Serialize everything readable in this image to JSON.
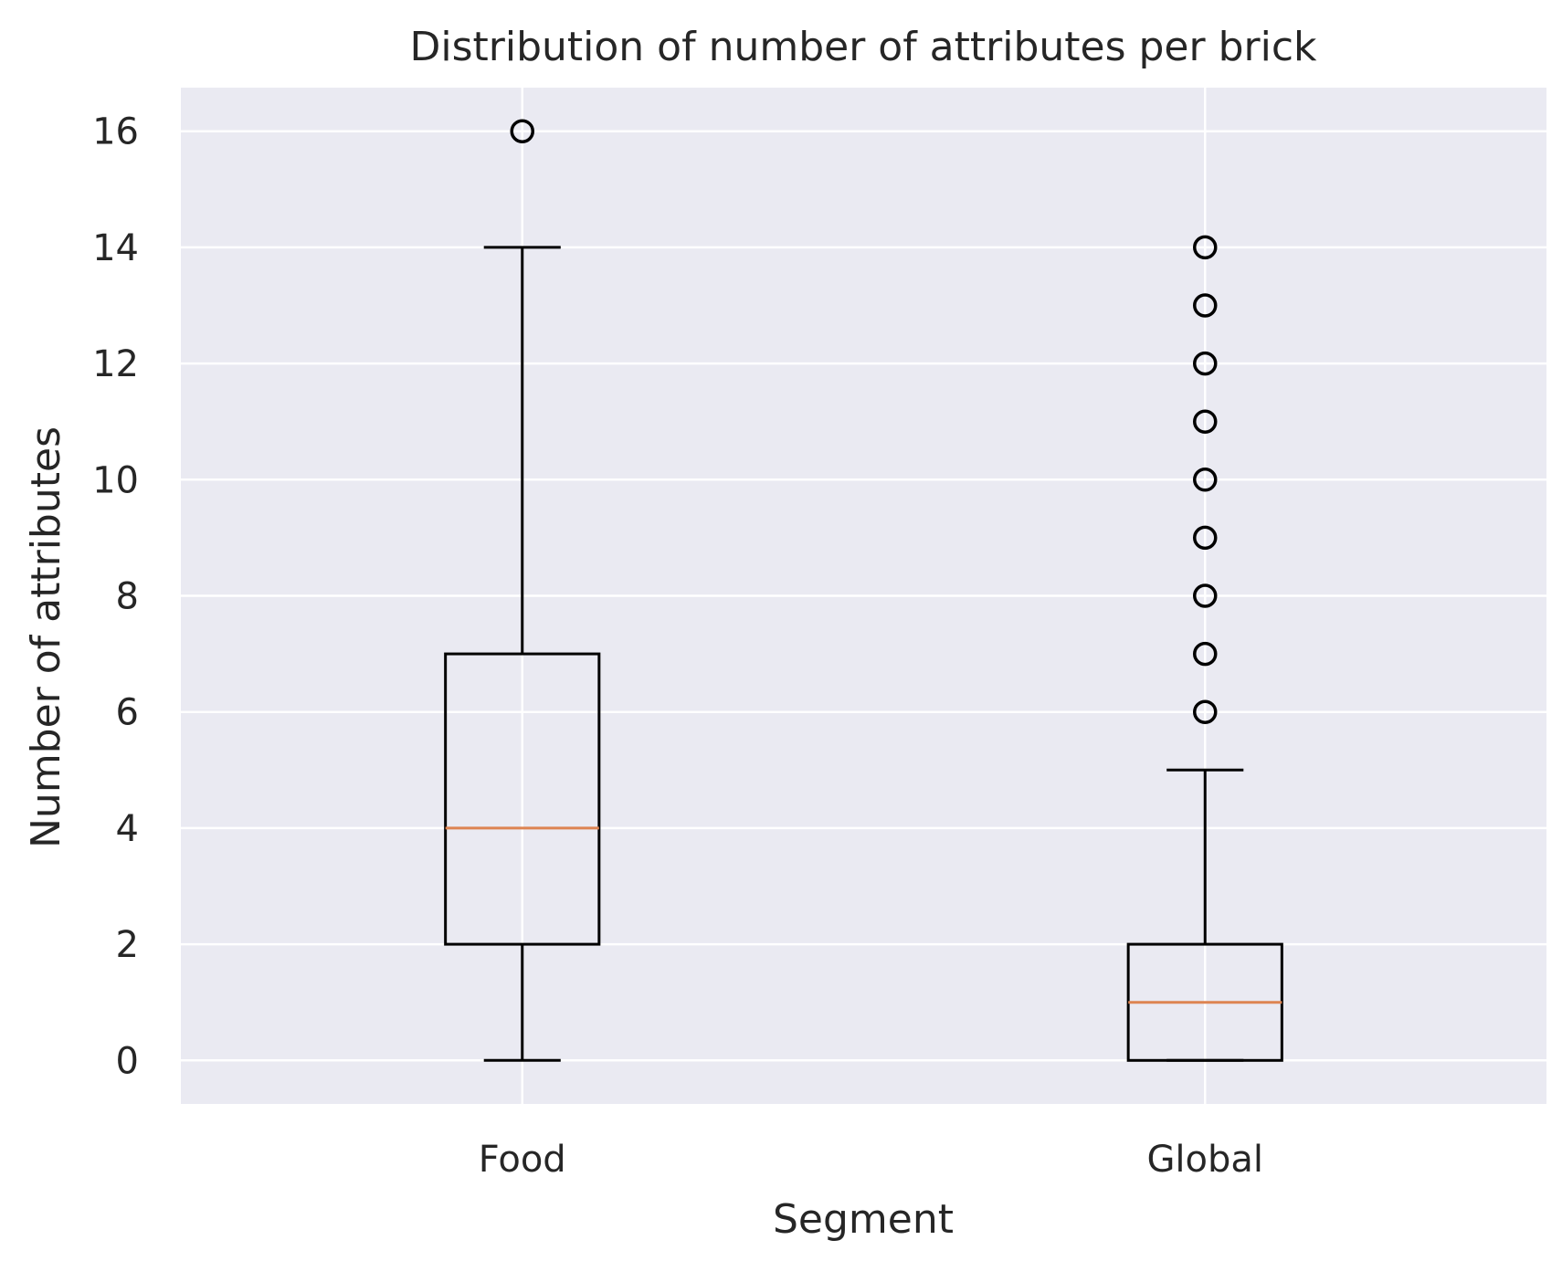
{
  "chart_data": {
    "type": "box",
    "title": "Distribution of number of attributes per brick",
    "xlabel": "Segment",
    "ylabel": "Number of attributes",
    "ylim": [
      -0.75,
      16.75
    ],
    "yticks": [
      0,
      2,
      4,
      6,
      8,
      10,
      12,
      14,
      16
    ],
    "categories": [
      "Food",
      "Global"
    ],
    "boxes": [
      {
        "category": "Food",
        "whisker_low": 0,
        "q1": 2,
        "median": 4,
        "q3": 7,
        "whisker_high": 14,
        "outliers": [
          16
        ]
      },
      {
        "category": "Global",
        "whisker_low": 0,
        "q1": 0,
        "median": 1,
        "q3": 2,
        "whisker_high": 5,
        "outliers": [
          6,
          7,
          8,
          9,
          10,
          11,
          12,
          13,
          14
        ]
      }
    ],
    "grid": true,
    "colors": {
      "plot_background": "#eaeaf2",
      "grid": "#ffffff",
      "box": "#000000",
      "median": "#dd8452",
      "text": "#262626"
    }
  }
}
